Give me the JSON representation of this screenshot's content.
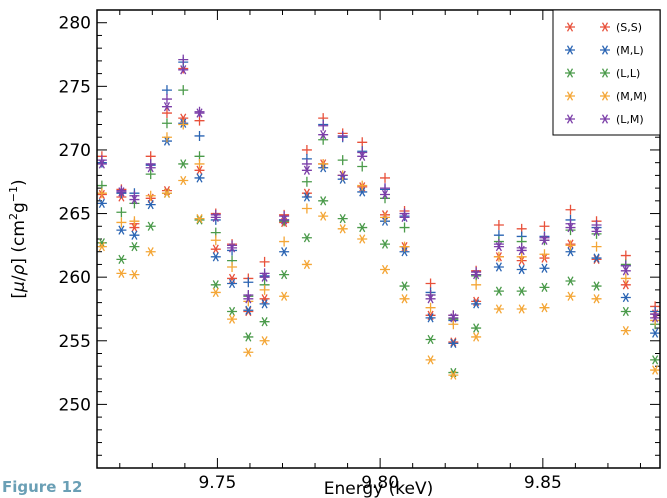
{
  "figure_label": "Figure 12",
  "chart_data": {
    "type": "scatter",
    "title": "",
    "xlabel": "Energy (keV)",
    "ylabel_prefix": "[",
    "ylabel_mu": "μ",
    "ylabel_mid": "/",
    "ylabel_rho": "ρ",
    "ylabel_close": "] (cm",
    "ylabel_exp1": "2",
    "ylabel_g": "g",
    "ylabel_exp2": "−1",
    "ylabel_end": ")",
    "xlim": [
      9.713,
      9.886
    ],
    "ylim": [
      245,
      281
    ],
    "xticks": [
      "9.75",
      "9.80",
      "9.85"
    ],
    "xtick_values": [
      9.75,
      9.8,
      9.85
    ],
    "yticks": [
      "250",
      "255",
      "260",
      "265",
      "270",
      "275",
      "280"
    ],
    "ytick_values": [
      250,
      255,
      260,
      265,
      270,
      275,
      280
    ],
    "legend_position": "top-right",
    "markers": [
      "asterisk",
      "plus"
    ],
    "x": [
      9.7145,
      9.7205,
      9.7245,
      9.7295,
      9.7345,
      9.7395,
      9.7445,
      9.7495,
      9.7545,
      9.7595,
      9.7645,
      9.7705,
      9.7775,
      9.7825,
      9.7885,
      9.7945,
      9.8015,
      9.8075,
      9.8155,
      9.8225,
      9.8295,
      9.8365,
      9.8435,
      9.8505,
      9.8585,
      9.8665,
      9.8755,
      9.8845
    ],
    "series": [
      {
        "name": "(S,S)",
        "color": "#e8503a",
        "star": [
          266.5,
          266.3,
          263.9,
          266.2,
          266.8,
          272.5,
          268.4,
          262.2,
          259.9,
          257.3,
          258.3,
          264.3,
          266.6,
          268.9,
          268.0,
          267.1,
          264.9,
          262.4,
          257.0,
          254.9,
          258.1,
          261.6,
          261.3,
          261.5,
          262.6,
          261.4,
          259.4,
          257.1
        ],
        "plus": [
          269.5,
          266.9,
          264.2,
          269.5,
          272.9,
          276.4,
          272.3,
          265.0,
          262.6,
          259.9,
          261.2,
          264.9,
          270.0,
          272.5,
          271.3,
          270.6,
          267.8,
          265.2,
          259.5,
          257.0,
          260.5,
          264.1,
          263.8,
          264.0,
          265.3,
          264.4,
          261.7,
          257.7
        ]
      },
      {
        "name": "(M,L)",
        "color": "#2a64b3",
        "star": [
          265.8,
          263.7,
          263.3,
          265.7,
          270.7,
          272.1,
          267.8,
          261.6,
          259.5,
          257.4,
          257.9,
          262.0,
          266.3,
          268.6,
          267.7,
          266.7,
          264.4,
          262.0,
          256.8,
          254.8,
          257.9,
          260.8,
          260.6,
          260.7,
          262.0,
          261.5,
          258.4,
          255.6
        ],
        "plus": [
          269.0,
          266.6,
          266.6,
          268.8,
          274.7,
          276.9,
          271.1,
          264.5,
          262.1,
          259.6,
          260.1,
          264.5,
          269.3,
          272.0,
          271.0,
          269.9,
          266.9,
          264.8,
          258.8,
          256.6,
          260.2,
          263.3,
          263.2,
          263.2,
          264.5,
          263.9,
          260.9,
          257.3
        ]
      },
      {
        "name": "(L,L)",
        "color": "#4a9a4a",
        "star": [
          262.7,
          261.4,
          262.4,
          264.0,
          266.6,
          268.9,
          264.5,
          259.4,
          257.3,
          255.3,
          256.5,
          260.2,
          263.1,
          266.0,
          264.6,
          263.9,
          262.6,
          259.3,
          255.1,
          252.5,
          256.0,
          258.9,
          258.9,
          259.2,
          259.7,
          259.3,
          257.3,
          253.5
        ],
        "plus": [
          267.2,
          265.1,
          265.8,
          268.1,
          272.1,
          274.7,
          269.5,
          263.5,
          261.3,
          258.5,
          259.4,
          264.4,
          267.5,
          270.8,
          269.2,
          268.7,
          266.2,
          263.9,
          258.6,
          256.7,
          260.1,
          262.8,
          262.8,
          262.9,
          263.7,
          263.4,
          261.0,
          256.3
        ]
      },
      {
        "name": "(M,M)",
        "color": "#f4a636",
        "star": [
          262.4,
          260.3,
          260.2,
          262.0,
          266.6,
          267.6,
          264.6,
          258.8,
          256.7,
          254.1,
          255.0,
          258.5,
          261.0,
          264.8,
          263.8,
          263.0,
          260.6,
          258.3,
          253.5,
          252.3,
          255.3,
          257.5,
          257.5,
          257.6,
          258.5,
          258.3,
          255.8,
          252.7
        ],
        "plus": [
          266.6,
          264.3,
          264.4,
          266.4,
          271.0,
          272.0,
          268.9,
          262.9,
          260.8,
          258.1,
          259.0,
          262.8,
          265.4,
          268.9,
          268.0,
          267.2,
          264.7,
          262.4,
          257.6,
          256.3,
          259.4,
          261.6,
          261.6,
          261.8,
          262.5,
          262.4,
          259.9,
          256.6
        ]
      },
      {
        "name": "(L,M)",
        "color": "#7b3ea8",
        "star": [
          268.9,
          266.7,
          266.1,
          268.6,
          273.4,
          276.3,
          272.9,
          264.7,
          262.3,
          258.3,
          260.0,
          264.5,
          268.4,
          271.2,
          268.0,
          269.5,
          266.5,
          264.7,
          258.3,
          256.8,
          260.2,
          262.4,
          262.1,
          262.9,
          263.9,
          263.6,
          260.5,
          256.8
        ],
        "plus": [
          269.2,
          266.8,
          266.4,
          268.9,
          274.0,
          277.1,
          273.0,
          264.9,
          262.5,
          258.6,
          260.3,
          264.8,
          268.9,
          271.9,
          271.1,
          269.8,
          267.0,
          265.0,
          258.6,
          257.0,
          260.4,
          262.6,
          262.3,
          263.1,
          264.2,
          264.1,
          260.9,
          257.1
        ]
      }
    ]
  }
}
